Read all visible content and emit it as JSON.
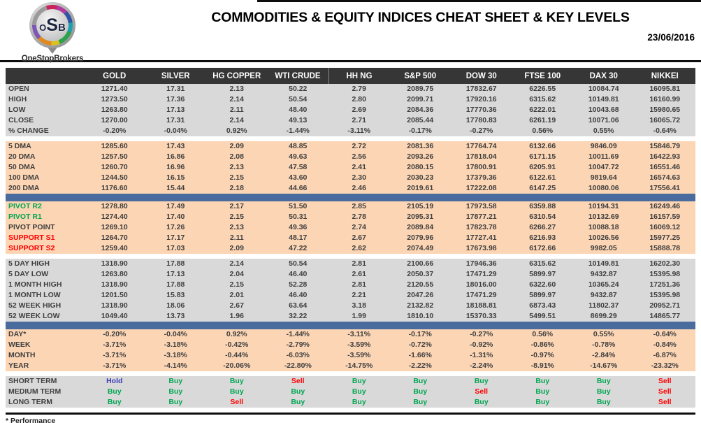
{
  "header": {
    "title": "COMMODITIES & EQUITY INDICES CHEAT SHEET & KEY LEVELS",
    "date": "23/06/2016",
    "logo": {
      "letters": [
        "O",
        "S",
        "B"
      ],
      "name": "OneStopBrokers"
    }
  },
  "colors": {
    "header_bar": "#363636",
    "section_gray": "#d9d9d9",
    "section_peach": "#fcd5b4",
    "divider_blue": "#4a6b9d",
    "green": "#00a651",
    "red": "#ff0000",
    "hold_blue": "#3a3ab8"
  },
  "table": {
    "columns": [
      "GOLD",
      "SILVER",
      "HG COPPER",
      "WTI CRUDE",
      "HH NG",
      "S&P 500",
      "DOW 30",
      "FTSE 100",
      "DAX 30",
      "NIKKEI"
    ],
    "sections": [
      {
        "id": "ohlc",
        "bg": "gray",
        "after": "gap",
        "rows": [
          {
            "label": "OPEN",
            "values": [
              "1271.40",
              "17.31",
              "2.13",
              "50.22",
              "2.79",
              "2089.75",
              "17832.67",
              "6226.55",
              "10084.74",
              "16095.81"
            ]
          },
          {
            "label": "HIGH",
            "values": [
              "1273.50",
              "17.36",
              "2.14",
              "50.54",
              "2.80",
              "2099.71",
              "17920.16",
              "6315.62",
              "10149.81",
              "16160.99"
            ]
          },
          {
            "label": "LOW",
            "values": [
              "1263.80",
              "17.13",
              "2.11",
              "48.40",
              "2.69",
              "2084.36",
              "17770.36",
              "6222.01",
              "10043.68",
              "15980.65"
            ]
          },
          {
            "label": "CLOSE",
            "values": [
              "1270.00",
              "17.31",
              "2.14",
              "49.13",
              "2.71",
              "2085.44",
              "17780.83",
              "6261.19",
              "10071.06",
              "16065.72"
            ]
          },
          {
            "label": "% CHANGE",
            "values": [
              "-0.20%",
              "-0.04%",
              "0.92%",
              "-1.44%",
              "-3.11%",
              "-0.17%",
              "-0.27%",
              "0.56%",
              "0.55%",
              "-0.64%"
            ]
          }
        ]
      },
      {
        "id": "dma",
        "bg": "peach",
        "after": "bar",
        "rows": [
          {
            "label": "5 DMA",
            "values": [
              "1285.60",
              "17.43",
              "2.09",
              "48.85",
              "2.72",
              "2081.36",
              "17764.74",
              "6132.66",
              "9846.09",
              "15846.79"
            ]
          },
          {
            "label": "20 DMA",
            "values": [
              "1257.50",
              "16.86",
              "2.08",
              "49.63",
              "2.56",
              "2093.26",
              "17818.04",
              "6171.15",
              "10011.69",
              "16422.93"
            ]
          },
          {
            "label": "50 DMA",
            "values": [
              "1260.70",
              "16.96",
              "2.13",
              "47.58",
              "2.41",
              "2080.15",
              "17800.91",
              "6205.91",
              "10047.72",
              "16551.46"
            ]
          },
          {
            "label": "100 DMA",
            "values": [
              "1244.50",
              "16.15",
              "2.15",
              "43.60",
              "2.30",
              "2030.23",
              "17379.36",
              "6122.61",
              "9819.64",
              "16574.63"
            ]
          },
          {
            "label": "200 DMA",
            "values": [
              "1176.60",
              "15.44",
              "2.18",
              "44.66",
              "2.46",
              "2019.61",
              "17222.08",
              "6147.25",
              "10080.06",
              "17556.41"
            ]
          }
        ]
      },
      {
        "id": "pivots",
        "bg": "peach",
        "after": "gap",
        "rows": [
          {
            "label": "PIVOT R2",
            "label_class": "lbl-green",
            "values": [
              "1278.80",
              "17.49",
              "2.17",
              "51.50",
              "2.85",
              "2105.19",
              "17973.58",
              "6359.88",
              "10194.31",
              "16249.46"
            ]
          },
          {
            "label": "PIVOT R1",
            "label_class": "lbl-green",
            "values": [
              "1274.40",
              "17.40",
              "2.15",
              "50.31",
              "2.78",
              "2095.31",
              "17877.21",
              "6310.54",
              "10132.69",
              "16157.59"
            ]
          },
          {
            "label": "PIVOT POINT",
            "values": [
              "1269.10",
              "17.26",
              "2.13",
              "49.36",
              "2.74",
              "2089.84",
              "17823.78",
              "6266.27",
              "10088.18",
              "16069.12"
            ]
          },
          {
            "label": "SUPPORT S1",
            "label_class": "lbl-red",
            "values": [
              "1264.70",
              "17.17",
              "2.11",
              "48.17",
              "2.67",
              "2079.96",
              "17727.41",
              "6216.93",
              "10026.56",
              "15977.25"
            ]
          },
          {
            "label": "SUPPORT S2",
            "label_class": "lbl-red",
            "values": [
              "1259.40",
              "17.03",
              "2.09",
              "47.22",
              "2.62",
              "2074.49",
              "17673.98",
              "6172.66",
              "9982.05",
              "15888.78"
            ]
          }
        ]
      },
      {
        "id": "ranges",
        "bg": "gray",
        "after": "bar",
        "rows": [
          {
            "label": "5 DAY HIGH",
            "values": [
              "1318.90",
              "17.88",
              "2.14",
              "50.54",
              "2.81",
              "2100.66",
              "17946.36",
              "6315.62",
              "10149.81",
              "16202.30"
            ]
          },
          {
            "label": "5 DAY LOW",
            "values": [
              "1263.80",
              "17.13",
              "2.04",
              "46.40",
              "2.61",
              "2050.37",
              "17471.29",
              "5899.97",
              "9432.87",
              "15395.98"
            ]
          },
          {
            "label": "1 MONTH HIGH",
            "values": [
              "1318.90",
              "17.88",
              "2.15",
              "52.28",
              "2.81",
              "2120.55",
              "18016.00",
              "6322.60",
              "10365.24",
              "17251.36"
            ]
          },
          {
            "label": "1 MONTH LOW",
            "values": [
              "1201.50",
              "15.83",
              "2.01",
              "46.40",
              "2.21",
              "2047.26",
              "17471.29",
              "5899.97",
              "9432.87",
              "15395.98"
            ]
          },
          {
            "label": "52 WEEK HIGH",
            "values": [
              "1318.90",
              "18.06",
              "2.67",
              "63.64",
              "3.18",
              "2132.82",
              "18188.81",
              "6873.43",
              "11802.37",
              "20952.71"
            ]
          },
          {
            "label": "52 WEEK LOW",
            "values": [
              "1049.40",
              "13.73",
              "1.96",
              "32.22",
              "1.99",
              "1810.10",
              "15370.33",
              "5499.51",
              "8699.29",
              "14865.77"
            ]
          }
        ]
      },
      {
        "id": "performance",
        "bg": "peach",
        "after": "gap",
        "rows": [
          {
            "label": "DAY*",
            "values": [
              "-0.20%",
              "-0.04%",
              "0.92%",
              "-1.44%",
              "-3.11%",
              "-0.17%",
              "-0.27%",
              "0.56%",
              "0.55%",
              "-0.64%"
            ]
          },
          {
            "label": "WEEK",
            "values": [
              "-3.71%",
              "-3.18%",
              "-0.42%",
              "-2.79%",
              "-3.59%",
              "-0.72%",
              "-0.92%",
              "-0.86%",
              "-0.78%",
              "-0.84%"
            ]
          },
          {
            "label": "MONTH",
            "values": [
              "-3.71%",
              "-3.18%",
              "-0.44%",
              "-6.03%",
              "-3.59%",
              "-1.66%",
              "-1.31%",
              "-0.97%",
              "-2.84%",
              "-6.87%"
            ]
          },
          {
            "label": "YEAR",
            "values": [
              "-3.71%",
              "-4.14%",
              "-20.06%",
              "-22.80%",
              "-14.75%",
              "-2.22%",
              "-2.24%",
              "-8.91%",
              "-14.67%",
              "-23.32%"
            ]
          }
        ]
      },
      {
        "id": "signals",
        "bg": "gray",
        "type": "signals",
        "rows": [
          {
            "label": "SHORT TERM",
            "values": [
              "Hold",
              "Buy",
              "Buy",
              "Sell",
              "Buy",
              "Buy",
              "Buy",
              "Buy",
              "Buy",
              "Sell"
            ]
          },
          {
            "label": "MEDIUM TERM",
            "values": [
              "Buy",
              "Buy",
              "Buy",
              "Buy",
              "Buy",
              "Buy",
              "Sell",
              "Buy",
              "Buy",
              "Sell"
            ]
          },
          {
            "label": "LONG TERM",
            "values": [
              "Buy",
              "Buy",
              "Sell",
              "Buy",
              "Buy",
              "Buy",
              "Buy",
              "Buy",
              "Buy",
              "Sell"
            ]
          }
        ]
      }
    ]
  },
  "footer": {
    "note": "* Performance"
  }
}
